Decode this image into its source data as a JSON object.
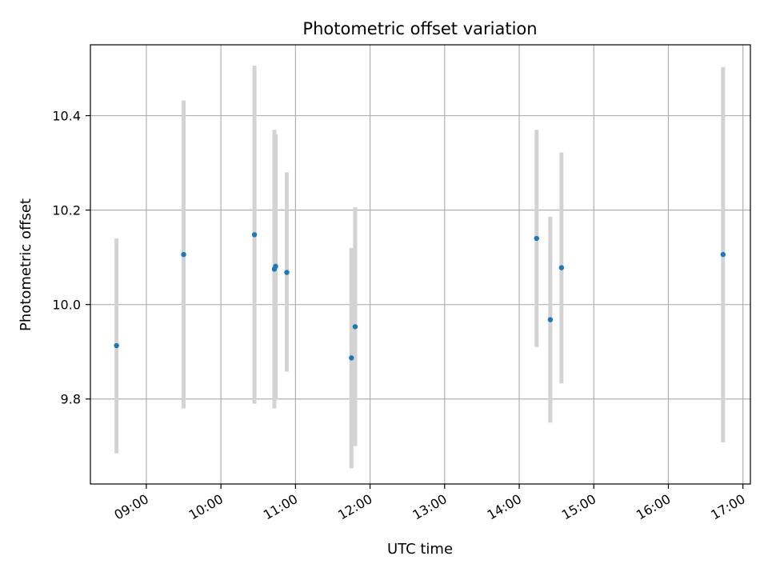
{
  "chart_data": {
    "type": "scatter",
    "title": "Photometric offset variation",
    "xlabel": "UTC time",
    "ylabel": "Photometric offset",
    "xlim": [
      "08:15",
      "17:06"
    ],
    "ylim": [
      9.62,
      10.55
    ],
    "x_ticks": [
      "09:00",
      "10:00",
      "11:00",
      "12:00",
      "13:00",
      "14:00",
      "15:00",
      "16:00",
      "17:00"
    ],
    "y_ticks": [
      9.8,
      10.0,
      10.2,
      10.4
    ],
    "y_tick_labels": [
      "9.8",
      "10.0",
      "10.2",
      "10.4"
    ],
    "grid": true,
    "point_color": "#1f77b4",
    "errorbar_color": "#d3d3d3",
    "points": [
      {
        "x": "08:36",
        "y": 9.913,
        "ylow": 9.685,
        "yhigh": 10.14
      },
      {
        "x": "09:30",
        "y": 10.106,
        "ylow": 9.78,
        "yhigh": 10.432
      },
      {
        "x": "10:27",
        "y": 10.148,
        "ylow": 9.79,
        "yhigh": 10.506
      },
      {
        "x": "10:43",
        "y": 10.075,
        "ylow": 9.78,
        "yhigh": 10.37
      },
      {
        "x": "10:44",
        "y": 10.081,
        "ylow": 9.8,
        "yhigh": 10.36
      },
      {
        "x": "10:53",
        "y": 10.068,
        "ylow": 9.858,
        "yhigh": 10.28
      },
      {
        "x": "11:45",
        "y": 9.887,
        "ylow": 9.653,
        "yhigh": 10.12
      },
      {
        "x": "11:48",
        "y": 9.953,
        "ylow": 9.7,
        "yhigh": 10.206
      },
      {
        "x": "14:14",
        "y": 10.14,
        "ylow": 9.91,
        "yhigh": 10.37
      },
      {
        "x": "14:25",
        "y": 9.968,
        "ylow": 9.75,
        "yhigh": 10.186
      },
      {
        "x": "14:34",
        "y": 10.078,
        "ylow": 9.833,
        "yhigh": 10.322
      },
      {
        "x": "16:44",
        "y": 10.106,
        "ylow": 9.708,
        "yhigh": 10.503
      }
    ]
  }
}
